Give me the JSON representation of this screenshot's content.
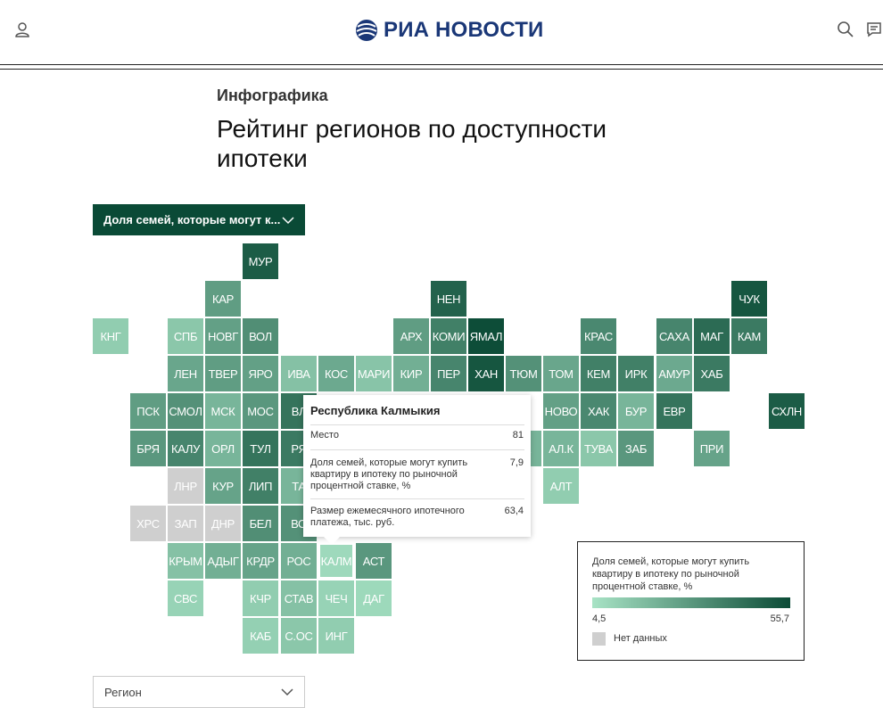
{
  "header": {
    "logo_text": "РИА НОВОСТИ",
    "icons": [
      "user-icon",
      "search-icon",
      "chat-icon"
    ]
  },
  "article": {
    "kicker": "Инфографика",
    "title": "Рейтинг регионов по доступности ипотеки"
  },
  "controls": {
    "metric_dropdown": "Доля семей, которые могут к...",
    "region_dropdown": "Регион"
  },
  "tooltip": {
    "region": "Республика Калмыкия",
    "rows": [
      {
        "label": "Место",
        "value": "81"
      },
      {
        "label": "Доля семей, которые могут купить квартиру в ипотеку по рыночной процентной ставке, %",
        "value": "7,9"
      },
      {
        "label": "Размер ежемесячного ипотечного платежа, тыс. руб.",
        "value": "63,4"
      }
    ]
  },
  "legend": {
    "title": "Доля семей, которые могут купить квартиру в ипотеку по рыночной процентной ставке, %",
    "min": "4,5",
    "max": "55,7",
    "no_data": "Нет данных",
    "color_min": "#a8e3c5",
    "color_max": "#0b4b36",
    "color_no_data": "#cfcfcf"
  },
  "chart_data": {
    "type": "heatmap",
    "metric": "Доля семей, которые могут купить квартиру в ипотеку по рыночной процентной ставке, %",
    "scale": [
      4.5,
      55.7
    ],
    "selected": "КАЛМ",
    "tiles": [
      {
        "label": "МУР",
        "col": 4,
        "row": 0,
        "value": 50
      },
      {
        "label": "КАР",
        "col": 3,
        "row": 1,
        "value": 28
      },
      {
        "label": "НЕН",
        "col": 9,
        "row": 1,
        "value": 48
      },
      {
        "label": "ЧУК",
        "col": 17,
        "row": 1,
        "value": 52
      },
      {
        "label": "КНГ",
        "col": 0,
        "row": 2,
        "value": 12
      },
      {
        "label": "СПБ",
        "col": 2,
        "row": 2,
        "value": 14
      },
      {
        "label": "НОВГ",
        "col": 3,
        "row": 2,
        "value": 27
      },
      {
        "label": "ВОЛ",
        "col": 4,
        "row": 2,
        "value": 33
      },
      {
        "label": "АРХ",
        "col": 8,
        "row": 2,
        "value": 28
      },
      {
        "label": "КОМИ",
        "col": 9,
        "row": 2,
        "value": 38
      },
      {
        "label": "ЯМАЛ",
        "col": 10,
        "row": 2,
        "value": 55
      },
      {
        "label": "КРАС",
        "col": 13,
        "row": 2,
        "value": 35
      },
      {
        "label": "САХА",
        "col": 15,
        "row": 2,
        "value": 36
      },
      {
        "label": "МАГ",
        "col": 16,
        "row": 2,
        "value": 45
      },
      {
        "label": "КАМ",
        "col": 17,
        "row": 2,
        "value": 40
      },
      {
        "label": "ЛЕН",
        "col": 2,
        "row": 3,
        "value": 25
      },
      {
        "label": "ТВЕР",
        "col": 3,
        "row": 3,
        "value": 28
      },
      {
        "label": "ЯРО",
        "col": 4,
        "row": 3,
        "value": 27
      },
      {
        "label": "ИВА",
        "col": 5,
        "row": 3,
        "value": 16
      },
      {
        "label": "КОС",
        "col": 6,
        "row": 3,
        "value": 24
      },
      {
        "label": "МАРИ",
        "col": 7,
        "row": 3,
        "value": 15
      },
      {
        "label": "КИР",
        "col": 8,
        "row": 3,
        "value": 22
      },
      {
        "label": "ПЕР",
        "col": 9,
        "row": 3,
        "value": 36
      },
      {
        "label": "ХАН",
        "col": 10,
        "row": 3,
        "value": 52
      },
      {
        "label": "ТЮМ",
        "col": 11,
        "row": 3,
        "value": 32
      },
      {
        "label": "ТОМ",
        "col": 12,
        "row": 3,
        "value": 25
      },
      {
        "label": "КЕМ",
        "col": 13,
        "row": 3,
        "value": 38
      },
      {
        "label": "ИРК",
        "col": 14,
        "row": 3,
        "value": 38
      },
      {
        "label": "АМУР",
        "col": 15,
        "row": 3,
        "value": 24
      },
      {
        "label": "ХАБ",
        "col": 16,
        "row": 3,
        "value": 40
      },
      {
        "label": "ПСК",
        "col": 1,
        "row": 4,
        "value": 28
      },
      {
        "label": "СМОЛ",
        "col": 2,
        "row": 4,
        "value": 32
      },
      {
        "label": "МСК",
        "col": 3,
        "row": 4,
        "value": 20
      },
      {
        "label": "МОС",
        "col": 4,
        "row": 4,
        "value": 30
      },
      {
        "label": "ВЛ",
        "col": 5,
        "row": 4,
        "value": 42
      },
      {
        "label": "НОВО",
        "col": 12,
        "row": 4,
        "value": 27
      },
      {
        "label": "ХАК",
        "col": 13,
        "row": 4,
        "value": 35
      },
      {
        "label": "БУР",
        "col": 14,
        "row": 4,
        "value": 20
      },
      {
        "label": "ЕВР",
        "col": 15,
        "row": 4,
        "value": 42
      },
      {
        "label": "СХЛН",
        "col": 18,
        "row": 4,
        "value": 50
      },
      {
        "label": "БРЯ",
        "col": 1,
        "row": 5,
        "value": 30
      },
      {
        "label": "КАЛУ",
        "col": 2,
        "row": 5,
        "value": 36
      },
      {
        "label": "ОРЛ",
        "col": 3,
        "row": 5,
        "value": 20
      },
      {
        "label": "ТУЛ",
        "col": 4,
        "row": 5,
        "value": 42
      },
      {
        "label": "РЯ",
        "col": 5,
        "row": 5,
        "value": 40
      },
      {
        "label": "СК",
        "col": 11,
        "row": 5,
        "value": 20
      },
      {
        "label": "АЛ.К",
        "col": 12,
        "row": 5,
        "value": 20
      },
      {
        "label": "ТУВА",
        "col": 13,
        "row": 5,
        "value": 14
      },
      {
        "label": "ЗАБ",
        "col": 14,
        "row": 5,
        "value": 30
      },
      {
        "label": "ПРИ",
        "col": 16,
        "row": 5,
        "value": 26
      },
      {
        "label": "ЛНР",
        "col": 2,
        "row": 6,
        "value": null
      },
      {
        "label": "КУР",
        "col": 3,
        "row": 6,
        "value": 26
      },
      {
        "label": "ЛИП",
        "col": 4,
        "row": 6,
        "value": 38
      },
      {
        "label": "ТА",
        "col": 5,
        "row": 6,
        "value": 20
      },
      {
        "label": "АЛТ",
        "col": 12,
        "row": 6,
        "value": 12
      },
      {
        "label": "ХРС",
        "col": 1,
        "row": 7,
        "value": null
      },
      {
        "label": "ЗАП",
        "col": 2,
        "row": 7,
        "value": null
      },
      {
        "label": "ДНР",
        "col": 3,
        "row": 7,
        "value": null
      },
      {
        "label": "БЕЛ",
        "col": 4,
        "row": 7,
        "value": 33
      },
      {
        "label": "ВО",
        "col": 5,
        "row": 7,
        "value": 32
      },
      {
        "label": "КРЫМ",
        "col": 2,
        "row": 8,
        "value": 16
      },
      {
        "label": "АДЫГ",
        "col": 3,
        "row": 8,
        "value": 22
      },
      {
        "label": "КРДР",
        "col": 4,
        "row": 8,
        "value": 26
      },
      {
        "label": "РОС",
        "col": 5,
        "row": 8,
        "value": 22
      },
      {
        "label": "КАЛМ",
        "col": 6,
        "row": 8,
        "value": 7.9
      },
      {
        "label": "АСТ",
        "col": 7,
        "row": 8,
        "value": 30
      },
      {
        "label": "СВС",
        "col": 2,
        "row": 9,
        "value": 10
      },
      {
        "label": "КЧР",
        "col": 4,
        "row": 9,
        "value": 12
      },
      {
        "label": "СТАВ",
        "col": 5,
        "row": 9,
        "value": 16
      },
      {
        "label": "ЧЕЧ",
        "col": 6,
        "row": 9,
        "value": 10
      },
      {
        "label": "ДАГ",
        "col": 7,
        "row": 9,
        "value": 8
      },
      {
        "label": "КАБ",
        "col": 4,
        "row": 10,
        "value": 11
      },
      {
        "label": "С.ОС",
        "col": 5,
        "row": 10,
        "value": 14
      },
      {
        "label": "ИНГ",
        "col": 6,
        "row": 10,
        "value": 12
      }
    ]
  }
}
